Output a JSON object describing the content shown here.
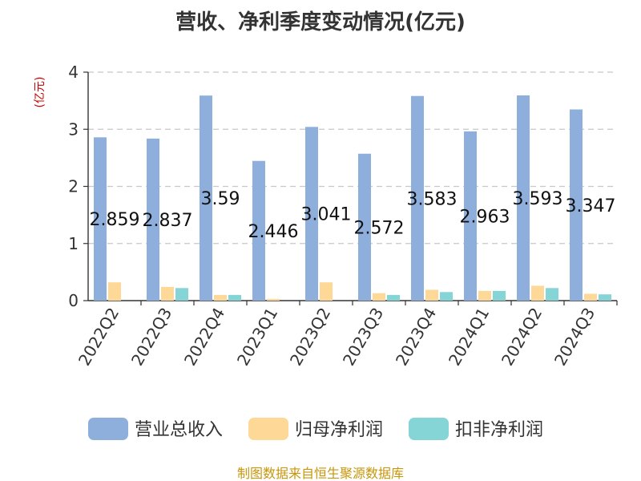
{
  "chart_data": {
    "type": "bar",
    "title": "营收、净利季度变动情况(亿元)",
    "unit_label": "(亿元)",
    "categories": [
      "2022Q2",
      "2022Q3",
      "2022Q4",
      "2023Q1",
      "2023Q2",
      "2023Q3",
      "2023Q4",
      "2024Q1",
      "2024Q2",
      "2024Q3"
    ],
    "ylim": [
      0,
      4
    ],
    "yticks": [
      "0",
      "1",
      "2",
      "3",
      "4"
    ],
    "grid": true,
    "legend_position": "bottom",
    "series": [
      {
        "name": "营业总收入",
        "color": "#8eaedb",
        "values": [
          2.859,
          2.837,
          3.59,
          2.446,
          3.041,
          2.572,
          3.583,
          2.963,
          3.593,
          3.347
        ],
        "data_labels": [
          "2.859",
          "2.837",
          "3.59",
          "2.446",
          "3.041",
          "2.572",
          "3.583",
          "2.963",
          "3.593",
          "3.347"
        ]
      },
      {
        "name": "归母净利润",
        "color": "#fdd896",
        "values": [
          0.32,
          0.24,
          0.1,
          0.03,
          0.32,
          0.13,
          0.19,
          0.17,
          0.26,
          0.12
        ]
      },
      {
        "name": "扣非净利润",
        "color": "#85d4d6",
        "values": [
          0.0,
          0.22,
          0.1,
          0.0,
          0.0,
          0.1,
          0.15,
          0.17,
          0.22,
          0.11
        ]
      }
    ],
    "source": "制图数据来自恒生聚源数据库"
  }
}
